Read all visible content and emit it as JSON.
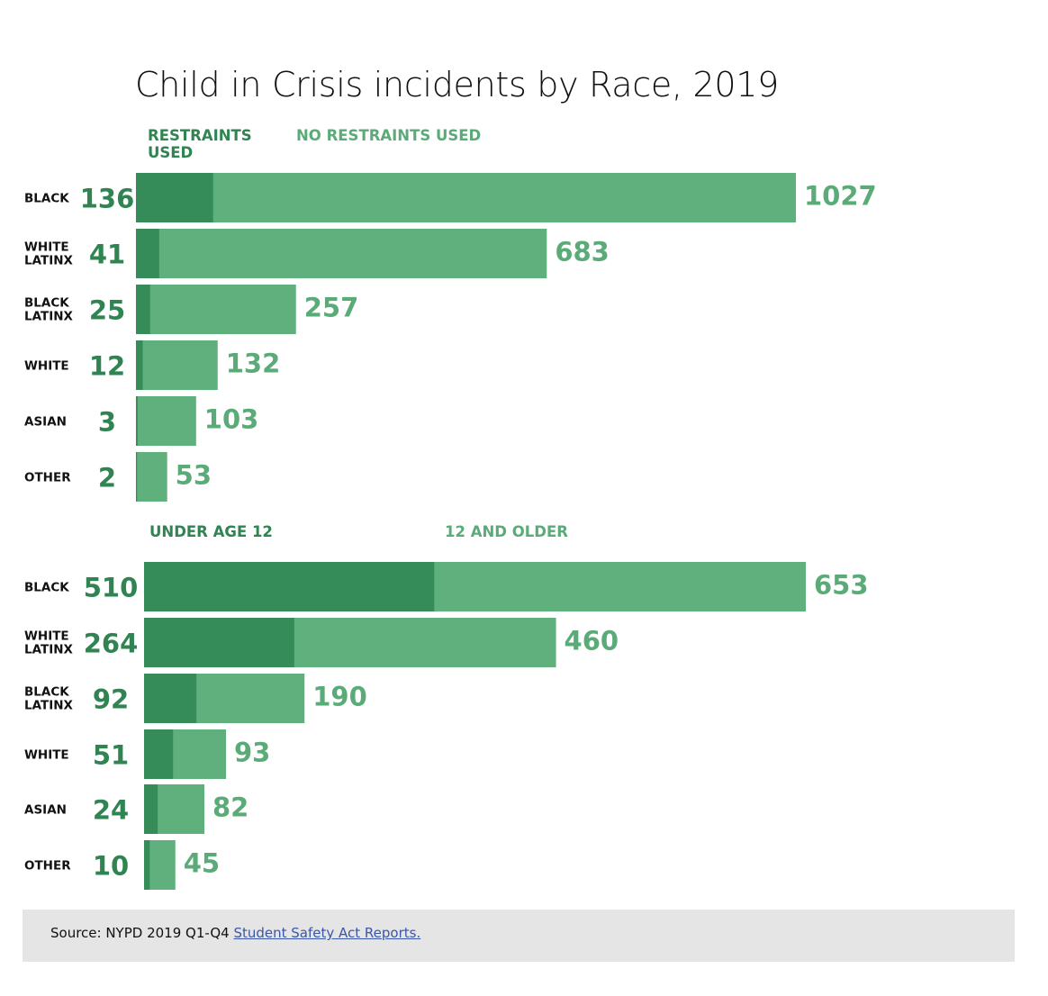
{
  "colors": {
    "dark": "#358c58",
    "light": "#5fb07c",
    "label_dark": "#2f8452",
    "label_light": "#5aab78"
  },
  "chart_data": [
    {
      "type": "bar",
      "stacked": true,
      "orientation": "horizontal",
      "title": "Child in Crisis incidents by Race, 2019",
      "categories": [
        [
          "BLACK"
        ],
        [
          "WHITE",
          "LATINX"
        ],
        [
          "BLACK",
          "LATINX"
        ],
        [
          "WHITE"
        ],
        [
          "ASIAN"
        ],
        [
          "OTHER"
        ]
      ],
      "series": [
        {
          "name": "RESTRAINTS USED",
          "values": [
            136,
            41,
            25,
            12,
            3,
            2
          ]
        },
        {
          "name": "NO RESTRAINTS USED",
          "values": [
            1027,
            683,
            257,
            132,
            103,
            53
          ]
        }
      ]
    },
    {
      "type": "bar",
      "stacked": true,
      "orientation": "horizontal",
      "title": "",
      "categories": [
        [
          "BLACK"
        ],
        [
          "WHITE",
          "LATINX"
        ],
        [
          "BLACK",
          "LATINX"
        ],
        [
          "WHITE"
        ],
        [
          "ASIAN"
        ],
        [
          "OTHER"
        ]
      ],
      "series": [
        {
          "name": "UNDER AGE 12",
          "values": [
            510,
            264,
            92,
            51,
            24,
            10
          ]
        },
        {
          "name": "12 AND OLDER",
          "values": [
            653,
            460,
            190,
            93,
            82,
            45
          ]
        }
      ]
    }
  ],
  "legend_top": [
    "RESTRAINTS",
    "USED"
  ],
  "source": {
    "prefix": "Source: NYPD 2019 Q1-Q4 ",
    "link_text": "Student Safety Act Reports."
  }
}
